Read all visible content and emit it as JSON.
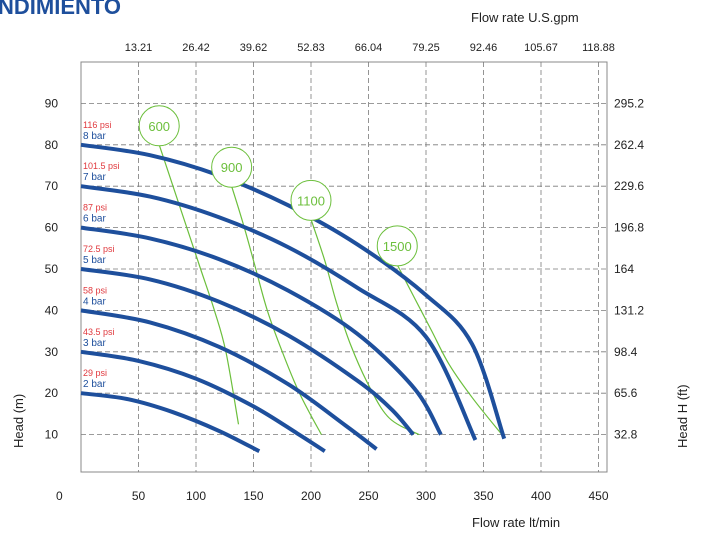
{
  "chart_data": {
    "type": "line",
    "banner": "NDIMIENTO",
    "xlabel": "Flow rate  lt/min",
    "xlabel_top": "Flow rate U.S.gpm",
    "ylabel": "Head (m)",
    "ylabel_right": "Head H (ft)",
    "x_origin_label": "0",
    "xlim": [
      0,
      450
    ],
    "ylim": [
      0,
      100
    ],
    "x_ticks": [
      "50",
      "100",
      "150",
      "200",
      "250",
      "300",
      "350",
      "400",
      "450"
    ],
    "x_ticks_top": [
      "13.21",
      "26.42",
      "39.62",
      "52.83",
      "66.04",
      "79.25",
      "92.46",
      "105.67",
      "118.88"
    ],
    "y_ticks": [
      "10",
      "20",
      "30",
      "40",
      "50",
      "60",
      "70",
      "80",
      "90"
    ],
    "y_ticks_right": [
      "32.8",
      "65.6",
      "98.4",
      "131.2",
      "164",
      "196.8",
      "229.6",
      "262.4",
      "295.2"
    ],
    "grid": true,
    "series": [
      {
        "name": "2 bar",
        "psi": "29 psi",
        "color": "#1e4f9c",
        "x": [
          0,
          40,
          80,
          120,
          155
        ],
        "y": [
          20,
          18.6,
          15.4,
          10.9,
          6
        ]
      },
      {
        "name": "3 bar",
        "psi": "43.5 psi",
        "color": "#1e4f9c",
        "x": [
          0,
          50,
          100,
          150,
          188,
          212
        ],
        "y": [
          30,
          27.8,
          23.5,
          16.8,
          10.3,
          6
        ]
      },
      {
        "name": "4 bar",
        "psi": "58 psi",
        "color": "#1e4f9c",
        "x": [
          0,
          60,
          120,
          180,
          230,
          257
        ],
        "y": [
          40,
          37.1,
          31.2,
          22.2,
          12.2,
          6.5
        ]
      },
      {
        "name": "5 bar",
        "psi": "72.5 psi",
        "color": "#1e4f9c",
        "x": [
          0,
          60,
          120,
          180,
          240,
          270,
          289
        ],
        "y": [
          50,
          47.5,
          42.1,
          34.0,
          23.1,
          16.1,
          10
        ]
      },
      {
        "name": "6 bar",
        "psi": "87 psi",
        "color": "#1e4f9c",
        "x": [
          0,
          60,
          120,
          180,
          240,
          290,
          313
        ],
        "y": [
          60,
          57.4,
          52.4,
          44.8,
          34.4,
          21.1,
          10
        ]
      },
      {
        "name": "7 bar",
        "psi": "101.5 psi",
        "color": "#1e4f9c",
        "x": [
          0,
          60,
          120,
          180,
          240,
          300,
          343
        ],
        "y": [
          70,
          67.5,
          62.5,
          55.3,
          45.5,
          33.6,
          8.7
        ]
      },
      {
        "name": "8 bar",
        "psi": "116 psi",
        "color": "#1e4f9c",
        "x": [
          0,
          60,
          120,
          180,
          240,
          300,
          340,
          368
        ],
        "y": [
          80,
          77.5,
          72.6,
          65.4,
          56.0,
          43.7,
          31.9,
          9
        ]
      }
    ],
    "speed_curves": [
      {
        "label": "600",
        "color": "#6cbf3c",
        "x": [
          68,
          80,
          92,
          104,
          116,
          126,
          137
        ],
        "y": [
          80,
          70,
          60,
          50,
          40,
          30,
          12.5
        ]
      },
      {
        "label": "900",
        "color": "#6cbf3c",
        "x": [
          131,
          142,
          152,
          162,
          175,
          190,
          209
        ],
        "y": [
          70,
          60,
          50,
          40,
          30,
          20,
          10
        ]
      },
      {
        "label": "1100",
        "color": "#6cbf3c",
        "x": [
          200,
          212,
          222,
          234,
          250,
          268,
          294
        ],
        "y": [
          62,
          52,
          42,
          32,
          22,
          14,
          10
        ]
      },
      {
        "label": "1500",
        "color": "#6cbf3c",
        "x": [
          275,
          290,
          305,
          320,
          340,
          366
        ],
        "y": [
          51,
          43,
          35,
          27,
          19,
          10
        ]
      }
    ]
  }
}
